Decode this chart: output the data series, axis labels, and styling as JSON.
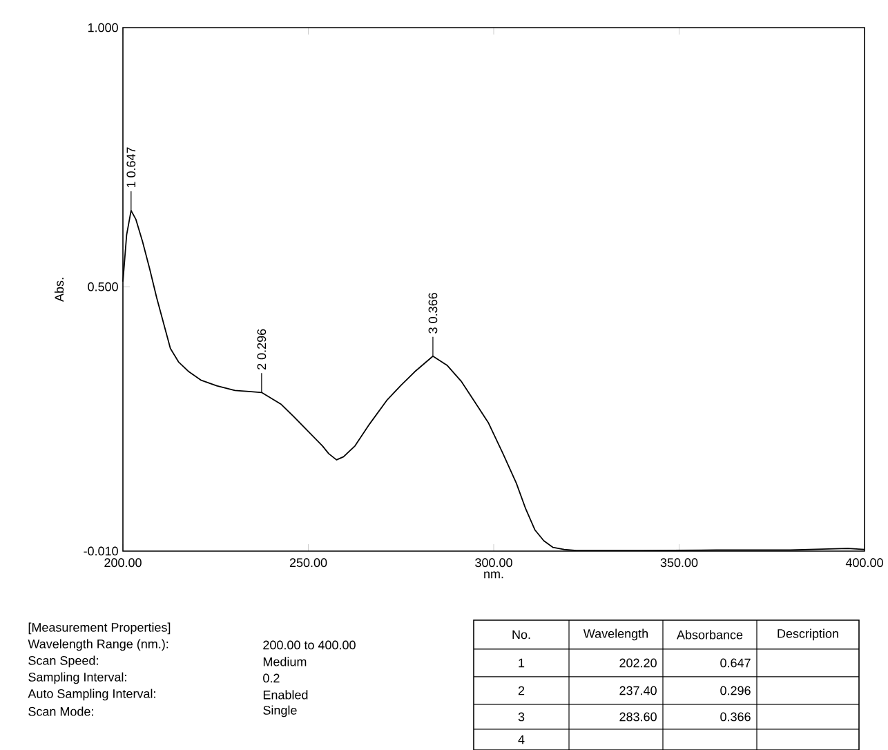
{
  "chart_data": {
    "type": "line",
    "xlabel": "nm.",
    "ylabel": "Abs.",
    "color": "#000000",
    "x": [
      200,
      201,
      202.2,
      203.5,
      205.3,
      207.2,
      209.1,
      212.8,
      215,
      217.8,
      221,
      225.3,
      230.2,
      234,
      237.4,
      242.7,
      246,
      250.1,
      253.8,
      255.5,
      257.6,
      259.5,
      262.6,
      266.5,
      271.3,
      275,
      278.7,
      283.6,
      287.5,
      291.2,
      294.5,
      298.6,
      302.5,
      306.1,
      308.6,
      311.1,
      313.5,
      316,
      319,
      322.3,
      340,
      360,
      380,
      395.5,
      400
    ],
    "values": [
      0.51,
      0.6,
      0.647,
      0.63,
      0.587,
      0.535,
      0.479,
      0.381,
      0.355,
      0.336,
      0.32,
      0.309,
      0.3,
      0.298,
      0.296,
      0.273,
      0.25,
      0.22,
      0.193,
      0.178,
      0.166,
      0.172,
      0.193,
      0.235,
      0.282,
      0.31,
      0.336,
      0.366,
      0.348,
      0.318,
      0.282,
      0.237,
      0.178,
      0.121,
      0.072,
      0.031,
      0.01,
      -0.003,
      -0.007,
      -0.009,
      -0.009,
      -0.008,
      -0.008,
      -0.005,
      -0.007
    ],
    "xlim": [
      200,
      400
    ],
    "ylim": [
      -0.01,
      1.0
    ],
    "xticks": [
      {
        "value": 200,
        "label": "200.00"
      },
      {
        "value": 250,
        "label": "250.00"
      },
      {
        "value": 300,
        "label": "300.00"
      },
      {
        "value": 350,
        "label": "350.00"
      },
      {
        "value": 400,
        "label": "400.00"
      }
    ],
    "yticks": [
      {
        "value": -0.01,
        "label": "-0.010"
      },
      {
        "value": 0.5,
        "label": "0.500"
      },
      {
        "value": 1.0,
        "label": "1.000"
      }
    ],
    "annotations": [
      {
        "text": "1 0.647",
        "x": 202.2,
        "y": 0.647
      },
      {
        "text": "2 0.296",
        "x": 237.4,
        "y": 0.296
      },
      {
        "text": "3 0.366",
        "x": 283.6,
        "y": 0.366
      },
      "[Measurement Properties]",
      "Wavelength Range (nm.):",
      "200.00 to 400.00",
      "Scan Speed:",
      "Medium",
      "Sampling Interval:",
      "0.2",
      "Auto Sampling Interval:",
      "Enabled",
      "Scan Mode:",
      "Single",
      "No.",
      "Wavelength",
      "Absorbance",
      "Description",
      "1",
      "202.20",
      "0.647",
      "2",
      "237.40",
      "0.296",
      "3",
      "283.60",
      "0.366",
      "4"
    ]
  }
}
